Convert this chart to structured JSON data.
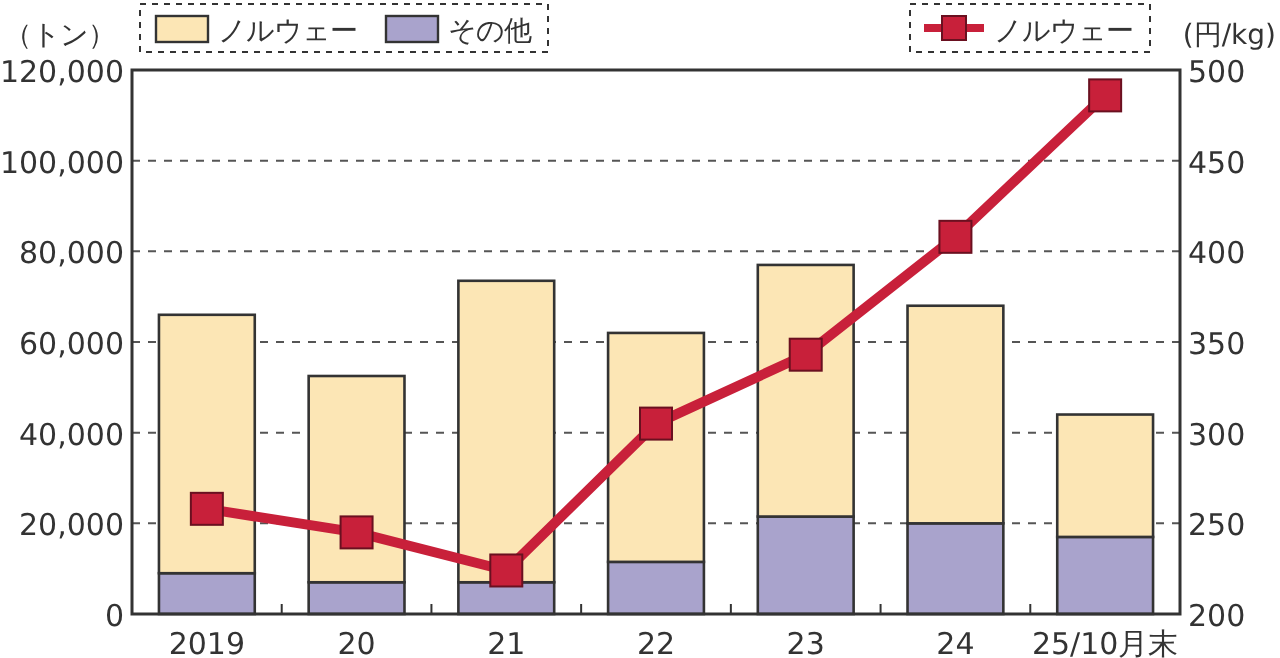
{
  "chart_data": {
    "type": "bar",
    "stacked": true,
    "categories": [
      "2019",
      "20",
      "21",
      "22",
      "23",
      "24",
      "25/10月末"
    ],
    "ylabel": "（トン）",
    "y2label": "(円/kg)",
    "ylim": [
      0,
      120000
    ],
    "yticks": [
      {
        "value": 0,
        "label": "0"
      },
      {
        "value": 20000,
        "label": "20,000"
      },
      {
        "value": 40000,
        "label": "40,000"
      },
      {
        "value": 60000,
        "label": "60,000"
      },
      {
        "value": 80000,
        "label": "80,000"
      },
      {
        "value": 100000,
        "label": "100,000"
      },
      {
        "value": 120000,
        "label": "120,000"
      }
    ],
    "y2lim": [
      200,
      500
    ],
    "y2ticks": [
      200,
      250,
      300,
      350,
      400,
      450,
      500
    ],
    "grid": "y",
    "legend": "top",
    "marker": "square",
    "line_style": "solid",
    "series": [
      {
        "name": "その他",
        "color": "#a9a3cc",
        "values": [
          9000,
          7000,
          7000,
          11500,
          21500,
          20000,
          17000
        ]
      },
      {
        "name": "ノルウェー",
        "color": "#fce6b5",
        "values": [
          57000,
          45500,
          66500,
          50500,
          55500,
          48000,
          27000
        ]
      },
      {
        "name": "ノルウェー",
        "type": "line",
        "axis": "y2",
        "color": "#c8203a",
        "values": [
          258,
          245,
          224,
          305,
          343,
          408,
          486
        ]
      }
    ]
  }
}
